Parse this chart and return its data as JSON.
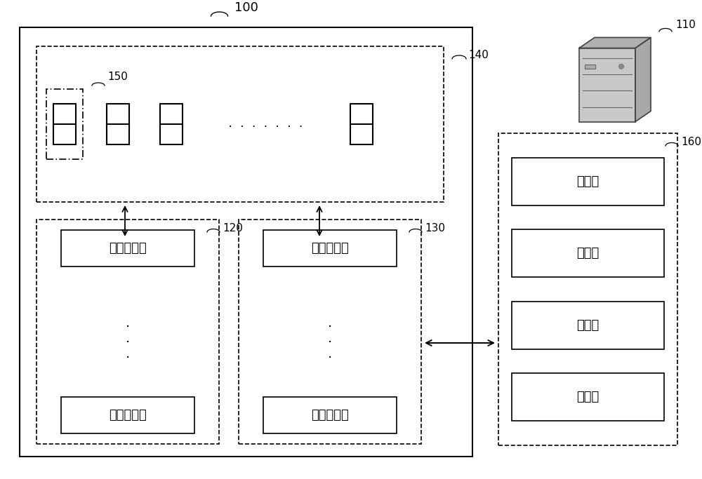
{
  "title": "100",
  "label_110": "110",
  "label_120": "120",
  "label_130": "130",
  "label_140": "140",
  "label_150": "150",
  "label_160": "160",
  "text_robot1": "第一机器人",
  "text_robot2": "第二机器人",
  "text_packing": "封包台",
  "font_size_label": 11,
  "font_size_box": 13,
  "font_size_title": 13
}
